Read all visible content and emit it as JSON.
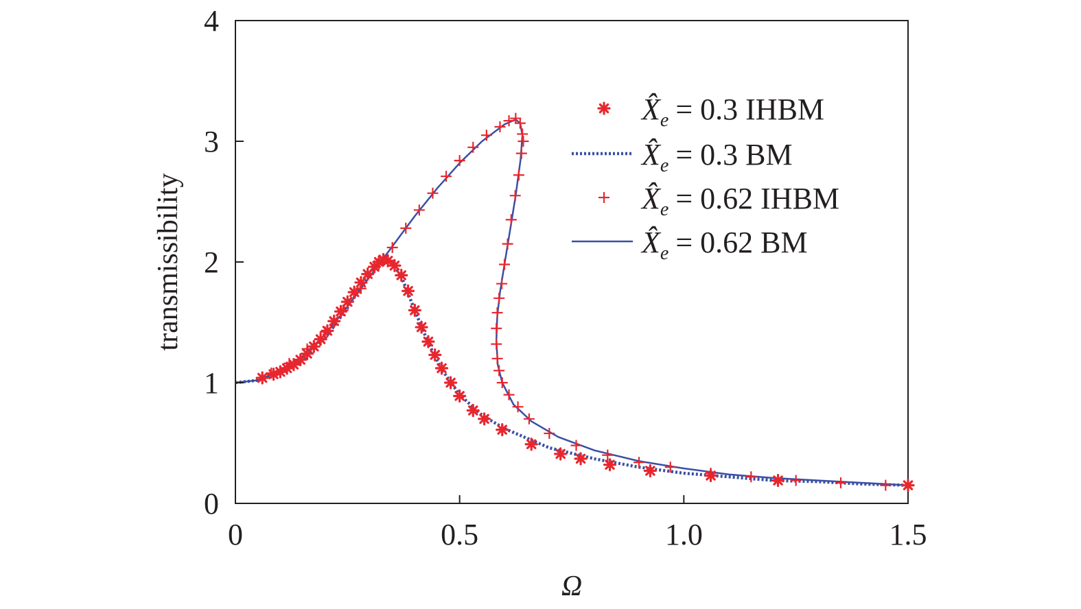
{
  "chart_data": {
    "type": "line",
    "title": "",
    "xlabel": "Ω",
    "ylabel": "transmissibility",
    "xlim": [
      0,
      1.5
    ],
    "ylim": [
      0,
      4
    ],
    "x_ticks": [
      0,
      0.5,
      1.0,
      1.5
    ],
    "x_tick_labels": [
      "0",
      "0.5",
      "1.0",
      "1.5"
    ],
    "y_ticks": [
      0,
      1,
      2,
      3,
      4
    ],
    "y_tick_labels": [
      "0",
      "1",
      "2",
      "3",
      "4"
    ],
    "grid": false,
    "legend_position": "top-right",
    "colors": {
      "marker": "#e8262e",
      "line": "#3a4fa3",
      "axis": "#231f20"
    },
    "series": [
      {
        "name": "X̂e = 0.3 IHBM",
        "legend_symbol": "X̂",
        "legend_subscript": "e",
        "legend_value": "= 0.3 IHBM",
        "style": "asterisk",
        "points": [
          [
            0.06,
            1.04
          ],
          [
            0.085,
            1.07
          ],
          [
            0.1,
            1.09
          ],
          [
            0.115,
            1.12
          ],
          [
            0.13,
            1.15
          ],
          [
            0.145,
            1.19
          ],
          [
            0.16,
            1.24
          ],
          [
            0.175,
            1.3
          ],
          [
            0.19,
            1.36
          ],
          [
            0.205,
            1.43
          ],
          [
            0.22,
            1.51
          ],
          [
            0.235,
            1.59
          ],
          [
            0.25,
            1.67
          ],
          [
            0.265,
            1.75
          ],
          [
            0.28,
            1.83
          ],
          [
            0.295,
            1.9
          ],
          [
            0.31,
            1.96
          ],
          [
            0.32,
            2.0
          ],
          [
            0.33,
            2.02
          ],
          [
            0.34,
            2.01
          ],
          [
            0.355,
            1.97
          ],
          [
            0.37,
            1.89
          ],
          [
            0.385,
            1.76
          ],
          [
            0.4,
            1.6
          ],
          [
            0.415,
            1.46
          ],
          [
            0.43,
            1.34
          ],
          [
            0.445,
            1.23
          ],
          [
            0.46,
            1.12
          ],
          [
            0.48,
            1.0
          ],
          [
            0.5,
            0.89
          ],
          [
            0.53,
            0.77
          ],
          [
            0.555,
            0.7
          ],
          [
            0.595,
            0.61
          ],
          [
            0.66,
            0.49
          ],
          [
            0.725,
            0.41
          ],
          [
            0.77,
            0.37
          ],
          [
            0.835,
            0.32
          ],
          [
            0.925,
            0.27
          ],
          [
            1.06,
            0.23
          ],
          [
            1.21,
            0.19
          ],
          [
            1.5,
            0.15
          ]
        ]
      },
      {
        "name": "X̂e = 0.3 BM",
        "legend_symbol": "X̂",
        "legend_subscript": "e",
        "legend_value": "= 0.3 BM",
        "style": "dotted",
        "points": [
          [
            0,
            1.0
          ],
          [
            0.05,
            1.02
          ],
          [
            0.1,
            1.08
          ],
          [
            0.15,
            1.19
          ],
          [
            0.2,
            1.37
          ],
          [
            0.25,
            1.62
          ],
          [
            0.29,
            1.85
          ],
          [
            0.32,
            1.98
          ],
          [
            0.335,
            2.02
          ],
          [
            0.35,
            1.99
          ],
          [
            0.37,
            1.88
          ],
          [
            0.4,
            1.6
          ],
          [
            0.43,
            1.33
          ],
          [
            0.46,
            1.11
          ],
          [
            0.5,
            0.9
          ],
          [
            0.55,
            0.73
          ],
          [
            0.6,
            0.62
          ],
          [
            0.7,
            0.46
          ],
          [
            0.8,
            0.37
          ],
          [
            0.9,
            0.3
          ],
          [
            1.0,
            0.25
          ],
          [
            1.1,
            0.22
          ],
          [
            1.2,
            0.19
          ],
          [
            1.3,
            0.18
          ],
          [
            1.4,
            0.16
          ],
          [
            1.5,
            0.15
          ]
        ]
      },
      {
        "name": "X̂e = 0.62 IHBM",
        "legend_symbol": "X̂",
        "legend_subscript": "e",
        "legend_value": "= 0.62 IHBM",
        "style": "plus",
        "points": [
          [
            0.08,
            1.08
          ],
          [
            0.12,
            1.16
          ],
          [
            0.16,
            1.28
          ],
          [
            0.2,
            1.42
          ],
          [
            0.24,
            1.6
          ],
          [
            0.28,
            1.78
          ],
          [
            0.32,
            1.98
          ],
          [
            0.35,
            2.12
          ],
          [
            0.38,
            2.28
          ],
          [
            0.41,
            2.43
          ],
          [
            0.44,
            2.57
          ],
          [
            0.47,
            2.71
          ],
          [
            0.5,
            2.84
          ],
          [
            0.53,
            2.95
          ],
          [
            0.56,
            3.05
          ],
          [
            0.59,
            3.12
          ],
          [
            0.61,
            3.17
          ],
          [
            0.625,
            3.19
          ],
          [
            0.635,
            3.15
          ],
          [
            0.64,
            3.06
          ],
          [
            0.642,
            3.0
          ],
          [
            0.638,
            2.9
          ],
          [
            0.632,
            2.72
          ],
          [
            0.624,
            2.55
          ],
          [
            0.615,
            2.35
          ],
          [
            0.607,
            2.15
          ],
          [
            0.6,
            1.98
          ],
          [
            0.594,
            1.82
          ],
          [
            0.588,
            1.7
          ],
          [
            0.584,
            1.58
          ],
          [
            0.582,
            1.45
          ],
          [
            0.582,
            1.32
          ],
          [
            0.584,
            1.2
          ],
          [
            0.588,
            1.1
          ],
          [
            0.595,
            1.0
          ],
          [
            0.61,
            0.9
          ],
          [
            0.63,
            0.8
          ],
          [
            0.655,
            0.7
          ],
          [
            0.7,
            0.58
          ],
          [
            0.76,
            0.48
          ],
          [
            0.83,
            0.4
          ],
          [
            0.9,
            0.34
          ],
          [
            0.97,
            0.3
          ],
          [
            1.06,
            0.25
          ],
          [
            1.15,
            0.22
          ],
          [
            1.25,
            0.19
          ],
          [
            1.35,
            0.17
          ],
          [
            1.45,
            0.15
          ]
        ]
      },
      {
        "name": "X̂e = 0.62 BM",
        "legend_symbol": "X̂",
        "legend_subscript": "e",
        "legend_value": "= 0.62 BM",
        "style": "solid",
        "points": [
          [
            0,
            1.0
          ],
          [
            0.05,
            1.02
          ],
          [
            0.1,
            1.1
          ],
          [
            0.15,
            1.22
          ],
          [
            0.2,
            1.4
          ],
          [
            0.25,
            1.63
          ],
          [
            0.3,
            1.88
          ],
          [
            0.35,
            2.13
          ],
          [
            0.4,
            2.38
          ],
          [
            0.45,
            2.61
          ],
          [
            0.5,
            2.82
          ],
          [
            0.55,
            3.0
          ],
          [
            0.6,
            3.14
          ],
          [
            0.625,
            3.18
          ],
          [
            0.635,
            3.15
          ],
          [
            0.64,
            3.05
          ],
          [
            0.636,
            2.85
          ],
          [
            0.625,
            2.55
          ],
          [
            0.612,
            2.25
          ],
          [
            0.6,
            1.98
          ],
          [
            0.59,
            1.75
          ],
          [
            0.584,
            1.55
          ],
          [
            0.582,
            1.35
          ],
          [
            0.585,
            1.15
          ],
          [
            0.595,
            1.0
          ],
          [
            0.62,
            0.82
          ],
          [
            0.66,
            0.68
          ],
          [
            0.72,
            0.55
          ],
          [
            0.8,
            0.44
          ],
          [
            0.9,
            0.35
          ],
          [
            1.0,
            0.29
          ],
          [
            1.1,
            0.24
          ],
          [
            1.2,
            0.21
          ],
          [
            1.3,
            0.19
          ],
          [
            1.4,
            0.17
          ],
          [
            1.5,
            0.15
          ]
        ]
      }
    ]
  }
}
